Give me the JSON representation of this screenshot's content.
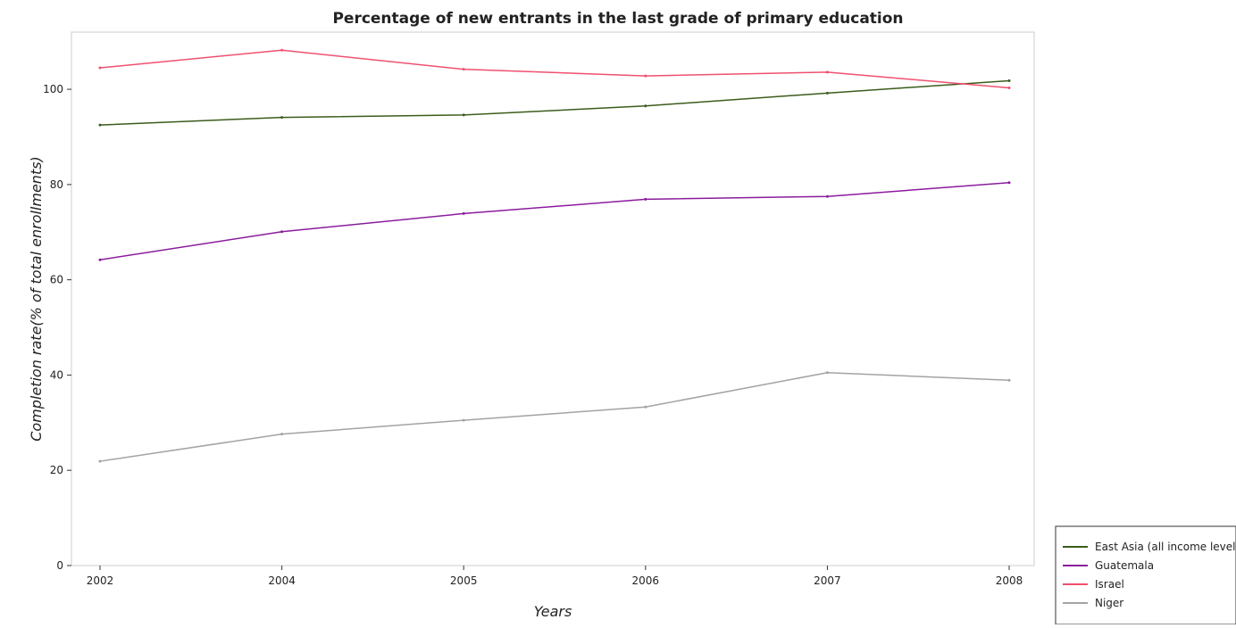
{
  "chart_data": {
    "type": "line",
    "title": "Percentage of new entrants in the last grade of primary education",
    "xlabel": "Years",
    "ylabel": "Completion rate(% of total enrollments)",
    "categories": [
      "2002",
      "2004",
      "2005",
      "2006",
      "2007",
      "2008"
    ],
    "ylim": [
      0,
      112
    ],
    "yticks": [
      0,
      20,
      40,
      60,
      80,
      100
    ],
    "legend_position": "bottom-right",
    "grid": false,
    "series": [
      {
        "name": "East Asia (all income levels)",
        "color": "#3b5c1c",
        "values": [
          92.5,
          94.1,
          94.6,
          96.5,
          99.2,
          101.8
        ]
      },
      {
        "name": "Guatemala",
        "color": "#8a1c9c",
        "values": [
          64.2,
          70.1,
          73.9,
          76.9,
          77.5,
          80.4
        ]
      },
      {
        "name": "Israel",
        "color": "#f0506f",
        "values": [
          104.5,
          108.2,
          104.2,
          102.8,
          103.6,
          100.3
        ]
      },
      {
        "name": "Niger",
        "color": "#a3a3a3",
        "values": [
          21.9,
          27.6,
          30.5,
          33.3,
          40.5,
          38.9
        ]
      }
    ]
  }
}
